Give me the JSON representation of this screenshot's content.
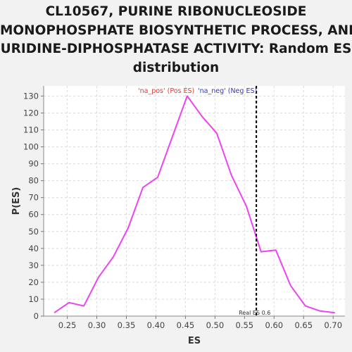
{
  "chart_data": {
    "type": "line",
    "title_lines": [
      "CL10567, PURINE RIBONUCLEOSIDE",
      "MONOPHOSPHATE BIOSYNTHETIC PROCESS, AND",
      "URIDINE-DIPHOSPHATASE ACTIVITY: Random ES",
      "distribution"
    ],
    "xlabel": "ES",
    "ylabel": "P(ES)",
    "xlim": [
      0.21,
      0.72
    ],
    "ylim": [
      0,
      136
    ],
    "xticks": [
      0.25,
      0.3,
      0.35,
      0.4,
      0.45,
      0.5,
      0.55,
      0.6,
      0.65,
      0.7
    ],
    "xtick_labels": [
      "0.25",
      "0.30",
      "0.35",
      "0.40",
      "0.45",
      "0.50",
      "0.55",
      "0.60",
      "0.65",
      "0.70"
    ],
    "yticks": [
      0,
      10,
      20,
      30,
      40,
      50,
      60,
      70,
      80,
      90,
      100,
      110,
      120,
      130
    ],
    "ytick_labels": [
      "0",
      "10",
      "20",
      "30",
      "40",
      "50",
      "60",
      "70",
      "80",
      "90",
      "100",
      "110",
      "120",
      "130"
    ],
    "grid": true,
    "series": [
      {
        "color": "#ee44ee",
        "x": [
          0.228,
          0.253,
          0.278,
          0.303,
          0.328,
          0.353,
          0.378,
          0.403,
          0.428,
          0.453,
          0.478,
          0.503,
          0.528,
          0.553,
          0.578,
          0.603,
          0.628,
          0.653,
          0.678,
          0.703
        ],
        "y": [
          2,
          8,
          6,
          23,
          35,
          52,
          76,
          82,
          106,
          130,
          118,
          108,
          83,
          65,
          38,
          39,
          18,
          6,
          3,
          2
        ]
      }
    ],
    "real_es": {
      "value": 0.57,
      "label": "Real ES 0.6",
      "color": "#000000"
    },
    "legend": [
      {
        "label": "'na_pos' (Pos ES)",
        "color": "#ee3333"
      },
      {
        "label": "'na_neg' (Neg ES)",
        "color": "#3333cc"
      }
    ],
    "legend_position": "top-center"
  }
}
